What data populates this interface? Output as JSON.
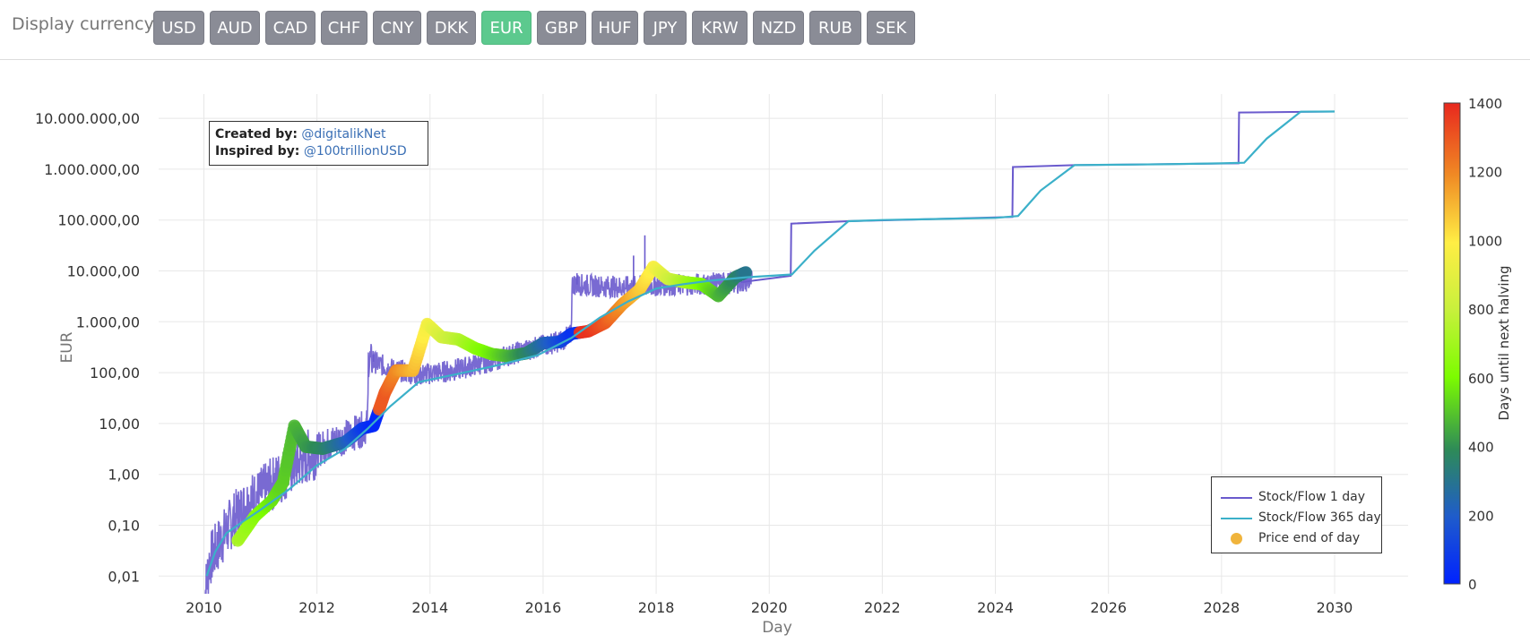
{
  "toolbar": {
    "label": "Display currency:",
    "currencies": [
      "USD",
      "AUD",
      "CAD",
      "CHF",
      "CNY",
      "DKK",
      "EUR",
      "GBP",
      "HUF",
      "JPY",
      "KRW",
      "NZD",
      "RUB",
      "SEK"
    ],
    "selected": "EUR"
  },
  "annotation": {
    "created_label": "Created by:",
    "created_handle": "@digitalikNet",
    "inspired_label": "Inspired by:",
    "inspired_handle": "@100trillionUSD"
  },
  "colors": {
    "sf1": "#6a5acd",
    "sf365": "#3bb0c9",
    "price_marker": "#f0b43c",
    "active_button": "#5cc98e",
    "button": "#8a8c96"
  },
  "chart_data": {
    "type": "line",
    "xlabel": "Day",
    "ylabel": "EUR",
    "y_scale": "log",
    "xlim": [
      2009.2,
      2031.3
    ],
    "ylim": [
      0.0045,
      30000000
    ],
    "x_ticks": [
      "2010",
      "2012",
      "2014",
      "2016",
      "2018",
      "2020",
      "2022",
      "2024",
      "2026",
      "2028",
      "2030"
    ],
    "y_ticks": [
      "0,01",
      "0,10",
      "1,00",
      "10,00",
      "100,00",
      "1.000,00",
      "10.000,00",
      "100.000,00",
      "1.000.000,00",
      "10.000.000,00"
    ],
    "grid": true,
    "legend_placement": "bottom-right",
    "legend": [
      "Stock/Flow 1 day",
      "Stock/Flow 365 day",
      "Price end of day"
    ],
    "colorbar": {
      "title": "Days until next halving",
      "ticks": [
        "0",
        "200",
        "400",
        "600",
        "800",
        "1000",
        "1200",
        "1400"
      ],
      "range": [
        0,
        1400
      ]
    },
    "series": [
      {
        "name": "Stock/Flow 365 day",
        "x": [
          2010.05,
          2010.2,
          2010.4,
          2010.7,
          2011.0,
          2011.5,
          2012.0,
          2012.5,
          2012.9,
          2013.3,
          2013.8,
          2014.5,
          2015.2,
          2015.9,
          2016.5,
          2017.0,
          2017.5,
          2018.0,
          2018.5,
          2019.0,
          2019.6,
          2020.4,
          2020.8,
          2021.4,
          2022.0,
          2023.0,
          2024.0,
          2024.4,
          2024.8,
          2025.4,
          2026.0,
          2027.0,
          2028.0,
          2028.4,
          2028.8,
          2029.4,
          2030.0
        ],
        "y": [
          0.01,
          0.03,
          0.07,
          0.12,
          0.2,
          0.5,
          1.5,
          3.2,
          8,
          22,
          65,
          95,
          140,
          220,
          480,
          1200,
          2500,
          4500,
          5500,
          6500,
          7500,
          8500,
          25000,
          95000,
          100000,
          105000,
          110000,
          120000,
          380000,
          1200000,
          1220000,
          1250000,
          1300000,
          1340000,
          4000000,
          13500000,
          13600000
        ]
      },
      {
        "name": "Stock/Flow 1 day",
        "x": [
          2010.0,
          2010.1,
          2010.3,
          2010.5,
          2010.8,
          2011.0,
          2011.3,
          2011.6,
          2011.9,
          2012.3,
          2012.6,
          2012.9,
          2012.91,
          2013.3,
          2013.8,
          2014.4,
          2015.0,
          2015.6,
          2016.3,
          2016.5,
          2016.51,
          2017.0,
          2017.5,
          2018.0,
          2018.5,
          2019.0,
          2019.5,
          2020.38,
          2020.39,
          2021.4,
          2024.3,
          2024.31,
          2025.4,
          2028.3,
          2028.31,
          2030.0
        ],
        "y": [
          0.003,
          0.02,
          0.05,
          0.12,
          0.3,
          0.4,
          0.8,
          1.5,
          2.5,
          4.5,
          6,
          9,
          180,
          120,
          90,
          110,
          160,
          260,
          420,
          550,
          5500,
          5000,
          4800,
          5200,
          5400,
          5600,
          6000,
          8000,
          85000,
          95000,
          115000,
          1100000,
          1200000,
          1300000,
          13000000,
          13600000
        ]
      },
      {
        "name": "Price end of day",
        "x": [
          2010.6,
          2010.9,
          2011.2,
          2011.4,
          2011.6,
          2011.8,
          2012.1,
          2012.5,
          2012.8,
          2013.0,
          2013.2,
          2013.4,
          2013.7,
          2013.95,
          2014.2,
          2014.5,
          2014.8,
          2015.1,
          2015.4,
          2015.7,
          2016.0,
          2016.3,
          2016.5,
          2016.8,
          2017.1,
          2017.4,
          2017.7,
          2017.95,
          2018.2,
          2018.5,
          2018.8,
          2019.1,
          2019.4,
          2019.6
        ],
        "y": [
          0.05,
          0.15,
          0.3,
          0.7,
          9,
          3.5,
          3.2,
          4.3,
          8,
          9,
          40,
          110,
          110,
          900,
          500,
          450,
          300,
          230,
          210,
          240,
          380,
          400,
          580,
          650,
          950,
          2200,
          4200,
          12000,
          7000,
          6000,
          5500,
          3200,
          7500,
          9500
        ],
        "c": [
          720,
          640,
          560,
          520,
          480,
          430,
          380,
          240,
          90,
          20,
          1300,
          1200,
          1110,
          960,
          850,
          760,
          650,
          560,
          470,
          380,
          250,
          140,
          60,
          1380,
          1300,
          1180,
          1080,
          980,
          840,
          720,
          600,
          480,
          380,
          300
        ]
      }
    ]
  }
}
